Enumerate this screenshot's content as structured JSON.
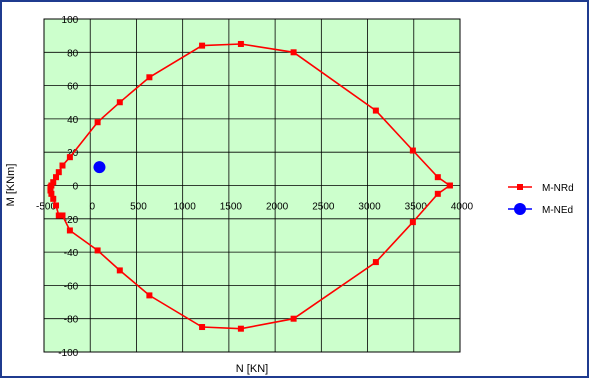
{
  "chart_data": {
    "type": "scatter",
    "xlabel": "N [KN]",
    "ylabel": "M [KNm]",
    "xlim": [
      -500,
      4000
    ],
    "ylim": [
      -100,
      100
    ],
    "x_ticks": [
      "-500",
      "0",
      "500",
      "1000",
      "1500",
      "2000",
      "2500",
      "3000",
      "3500",
      "4000"
    ],
    "y_ticks": [
      "100",
      "80",
      "60",
      "40",
      "20",
      "0",
      "-20",
      "-40",
      "-60",
      "-80",
      "-100"
    ],
    "grid": true,
    "legend_position": "right",
    "plot_background": "#ccffcc",
    "series": [
      {
        "name": "M-NRd",
        "color": "#ff0000",
        "marker": "square",
        "connected": true,
        "x": [
          3890,
          3760,
          3490,
          3090,
          2200,
          1630,
          1210,
          640,
          320,
          80,
          -220,
          -300,
          -340,
          -370,
          -400,
          -420,
          -430,
          -430,
          -420,
          -400,
          -370,
          -340,
          -300,
          -220,
          80,
          320,
          640,
          1210,
          1630,
          2200,
          3090,
          3490,
          3760,
          3890
        ],
        "y": [
          0,
          5,
          21,
          45,
          80,
          85,
          84,
          65,
          50,
          38,
          17,
          12,
          8,
          5,
          2,
          0,
          -1,
          -3,
          -5,
          -8,
          -12,
          -18,
          -18,
          -27,
          -39,
          -51,
          -66,
          -85,
          -86,
          -80,
          -46,
          -22,
          -5,
          0
        ]
      },
      {
        "name": "M-NEd",
        "color": "#0000ff",
        "marker": "circle",
        "connected": false,
        "x": [
          100
        ],
        "y": [
          11
        ]
      }
    ]
  }
}
